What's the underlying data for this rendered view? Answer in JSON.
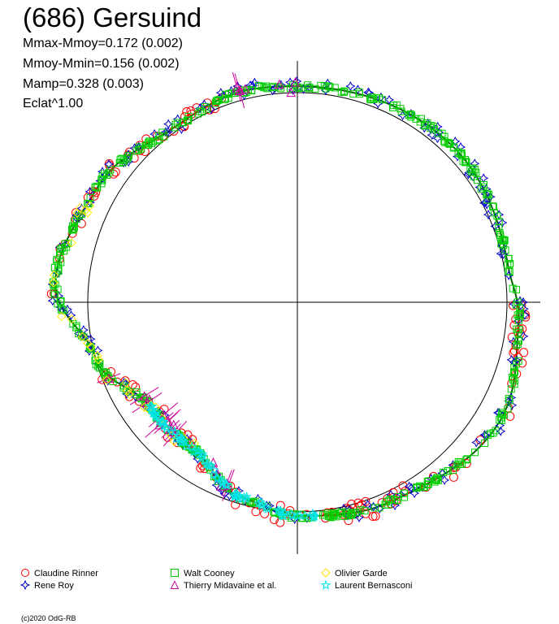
{
  "header": {
    "title": "(686) Gersuind",
    "stats": [
      "Mmax-Mmoy=0.172 (0.002)",
      "Mmoy-Mmin=0.156 (0.002)",
      "Mamp=0.328 (0.003)",
      "Eclat^1.00"
    ]
  },
  "footer": {
    "copyright": "(c)2020 OdG-RB"
  },
  "chart_data": {
    "type": "scatter",
    "plot_kind": "polar lightcurve",
    "reference_circle_radius": 1.0,
    "axes": {
      "crosshair": true
    },
    "amplitude": {
      "max_minus_mean": 0.172,
      "mean_minus_min": 0.156,
      "total": 0.328
    },
    "curve_model_radius": [
      {
        "angle_deg": 0,
        "r": 1.03
      },
      {
        "angle_deg": 45,
        "r": 1.05
      },
      {
        "angle_deg": 80,
        "r": 1.02
      },
      {
        "angle_deg": 95,
        "r": 1.06
      },
      {
        "angle_deg": 120,
        "r": 1.12
      },
      {
        "angle_deg": 155,
        "r": 1.05
      },
      {
        "angle_deg": 180,
        "r": 1.02
      },
      {
        "angle_deg": 195,
        "r": 0.97
      },
      {
        "angle_deg": 215,
        "r": 0.86
      },
      {
        "angle_deg": 235,
        "r": 0.86
      },
      {
        "angle_deg": 255,
        "r": 1.0
      },
      {
        "angle_deg": 275,
        "r": 1.16
      },
      {
        "angle_deg": 300,
        "r": 1.1
      },
      {
        "angle_deg": 325,
        "r": 1.02
      },
      {
        "angle_deg": 345,
        "r": 1.04
      }
    ],
    "series": [
      {
        "name": "Claudine Rinner",
        "marker": "circle",
        "color": "#ff0000",
        "arcs": [
          [
            90,
            250,
            0.045
          ],
          [
            270,
            340,
            0.03
          ]
        ]
      },
      {
        "name": "Rene Roy",
        "marker": "star4",
        "color": "#0000cc",
        "arcs": [
          [
            0,
            360,
            0.03
          ]
        ]
      },
      {
        "name": "Walt Cooney",
        "marker": "square",
        "color": "#00cc00",
        "arcs": [
          [
            0,
            360,
            0.012
          ]
        ]
      },
      {
        "name": "Thierry Midavaine et al.",
        "marker": "triangle",
        "color": "#cc0099",
        "arcs": [
          [
            200,
            250,
            0.03
          ],
          [
            340,
            360,
            0.03
          ]
        ]
      },
      {
        "name": "Olivier Garde",
        "marker": "diamond",
        "color": "#ffee00",
        "arcs": [
          [
            215,
            295,
            0.03
          ]
        ]
      },
      {
        "name": "Laurent Bernasconi",
        "marker": "star",
        "color": "#00e5e5",
        "arcs": [
          [
            175,
            235,
            0.012
          ]
        ]
      }
    ]
  }
}
